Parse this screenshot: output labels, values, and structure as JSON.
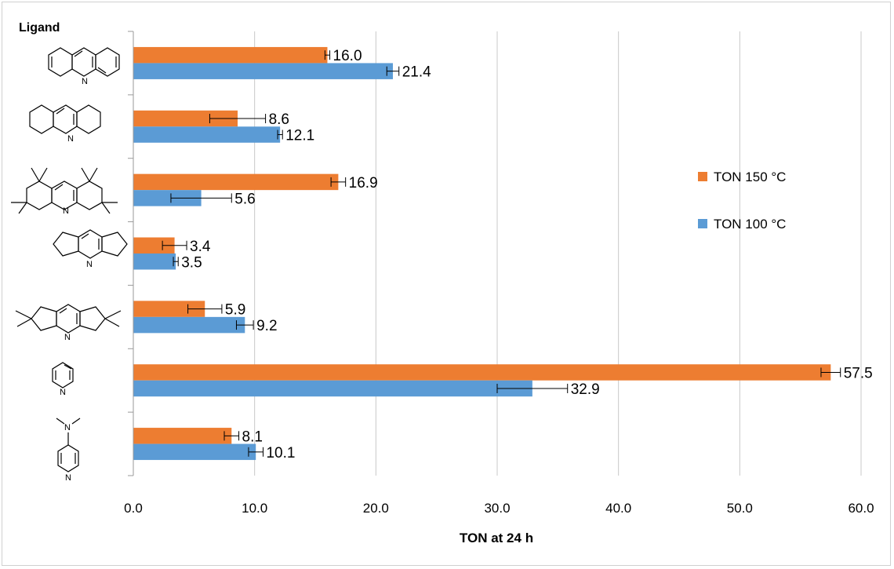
{
  "chart_data": {
    "type": "bar",
    "orientation": "horizontal",
    "ligand_label": "Ligand",
    "xlabel": "TON at 24 h",
    "xlim": [
      0,
      60
    ],
    "xticks": [
      "0.0",
      "10.0",
      "20.0",
      "30.0",
      "40.0",
      "50.0",
      "60.0"
    ],
    "grid": "vertical",
    "legend_position": "right",
    "categories": [
      "acridine",
      "octahydroacridine",
      "octamethyl-octahydroacridine",
      "dicyclopenta-pyridine",
      "tetramethyl-dicyclopenta-pyridine",
      "pyridine",
      "4-dimethylaminopyridine"
    ],
    "series": [
      {
        "name": "TON 150 °C",
        "color": "#ED7D31",
        "values": [
          16.0,
          8.6,
          16.9,
          3.4,
          5.9,
          57.5,
          8.1
        ],
        "labels": [
          "16.0",
          "8.6",
          "16.9",
          "3.4",
          "5.9",
          "57.5",
          "8.1"
        ],
        "errors": [
          0.2,
          2.3,
          0.6,
          1.0,
          1.4,
          0.8,
          0.6
        ]
      },
      {
        "name": "TON 100 °C",
        "color": "#5B9BD5",
        "values": [
          21.4,
          12.1,
          5.6,
          3.5,
          9.2,
          32.9,
          10.1
        ],
        "labels": [
          "21.4",
          "12.1",
          "5.6",
          "3.5",
          "9.2",
          "32.9",
          "10.1"
        ],
        "errors": [
          0.5,
          0.2,
          2.5,
          0.2,
          0.7,
          2.9,
          0.6
        ]
      }
    ]
  }
}
